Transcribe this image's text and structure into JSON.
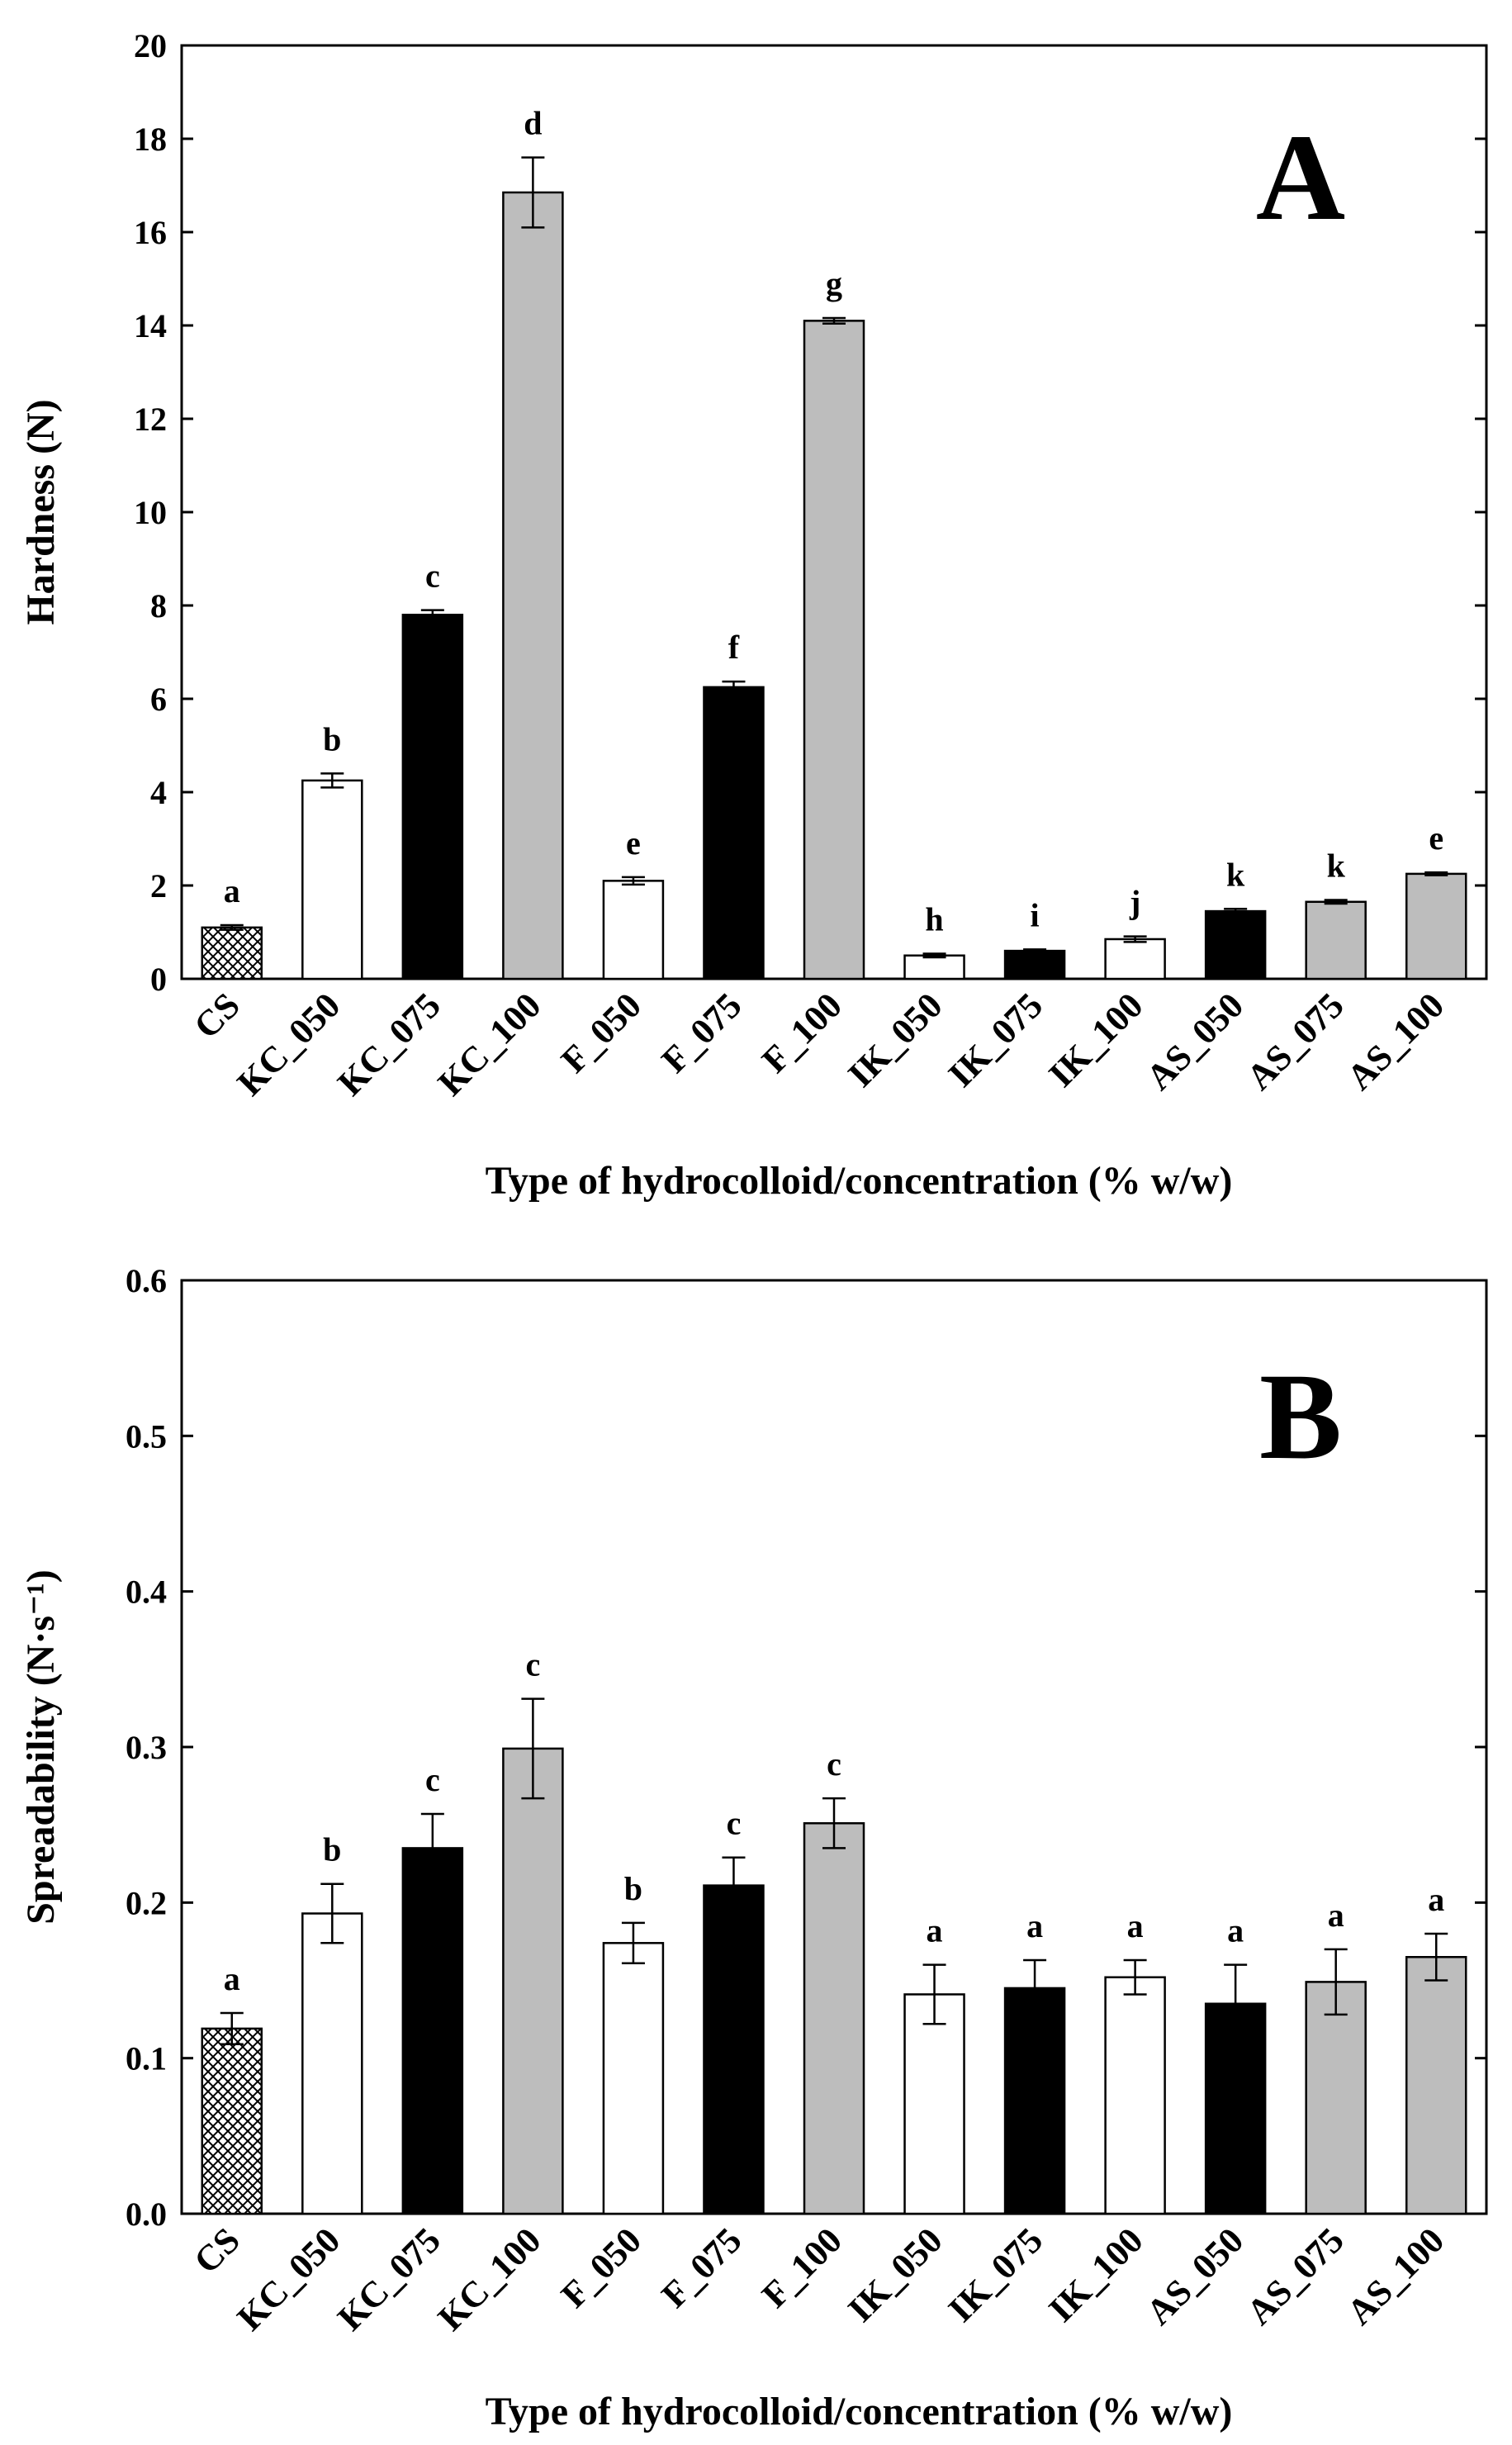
{
  "chart_data": [
    {
      "type": "bar",
      "panel_label": "A",
      "ylabel": "Hardness (N)",
      "xlabel": "Type of hydrocolloid/concentration (% w/w)",
      "ylim": [
        0,
        20
      ],
      "yticks": [
        0,
        2,
        4,
        6,
        8,
        10,
        12,
        14,
        16,
        18,
        20
      ],
      "ytick_labels": [
        "0",
        "2",
        "4",
        "6",
        "8",
        "10",
        "12",
        "14",
        "16",
        "18",
        "20"
      ],
      "categories": [
        "CS",
        "KC_050",
        "KC_075",
        "KC_100",
        "F_050",
        "F_075",
        "F_100",
        "IK_050",
        "IK_075",
        "IK_100",
        "AS_050",
        "AS_075",
        "AS_100"
      ],
      "values": [
        1.1,
        4.25,
        7.8,
        16.85,
        2.1,
        6.25,
        14.1,
        0.5,
        0.6,
        0.85,
        1.45,
        1.65,
        2.25
      ],
      "errors": [
        0.05,
        0.15,
        0.1,
        0.75,
        0.08,
        0.12,
        0.06,
        0.04,
        0.03,
        0.06,
        0.05,
        0.04,
        0.03
      ],
      "letters": [
        "a",
        "b",
        "c",
        "d",
        "e",
        "f",
        "g",
        "h",
        "i",
        "j",
        "k",
        "k",
        "e"
      ],
      "fills": [
        "hatch",
        "#ffffff",
        "#000000",
        "#bdbdbd",
        "#ffffff",
        "#000000",
        "#bdbdbd",
        "#ffffff",
        "#000000",
        "#ffffff",
        "#000000",
        "#bdbdbd",
        "#bdbdbd"
      ]
    },
    {
      "type": "bar",
      "panel_label": "B",
      "ylabel": "Spreadability (N·s⁻¹)",
      "xlabel": "Type of hydrocolloid/concentration (% w/w)",
      "ylim": [
        0,
        0.6
      ],
      "yticks": [
        0,
        0.1,
        0.2,
        0.3,
        0.4,
        0.5,
        0.6
      ],
      "ytick_labels": [
        "0.0",
        "0.1",
        "0.2",
        "0.3",
        "0.4",
        "0.5",
        "0.6"
      ],
      "categories": [
        "CS",
        "KC_050",
        "KC_075",
        "KC_100",
        "F_050",
        "F_075",
        "F_100",
        "IK_050",
        "IK_075",
        "IK_100",
        "AS_050",
        "AS_075",
        "AS_100"
      ],
      "values": [
        0.119,
        0.193,
        0.235,
        0.299,
        0.174,
        0.211,
        0.251,
        0.141,
        0.145,
        0.152,
        0.135,
        0.149,
        0.165
      ],
      "errors": [
        0.01,
        0.019,
        0.022,
        0.032,
        0.013,
        0.018,
        0.016,
        0.019,
        0.018,
        0.011,
        0.025,
        0.021,
        0.015
      ],
      "letters": [
        "a",
        "b",
        "c",
        "c",
        "b",
        "c",
        "c",
        "a",
        "a",
        "a",
        "a",
        "a",
        "a"
      ],
      "fills": [
        "hatch",
        "#ffffff",
        "#000000",
        "#bdbdbd",
        "#ffffff",
        "#000000",
        "#bdbdbd",
        "#ffffff",
        "#000000",
        "#ffffff",
        "#000000",
        "#bdbdbd",
        "#bdbdbd"
      ]
    }
  ]
}
